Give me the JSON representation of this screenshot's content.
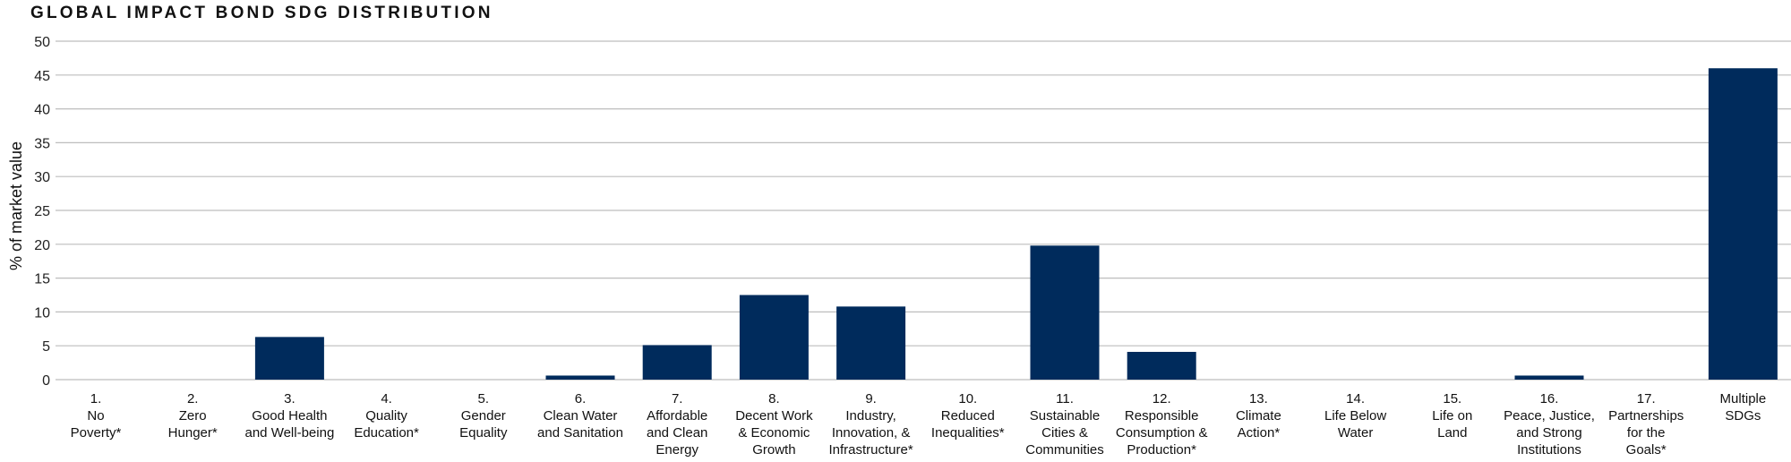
{
  "chart_data": {
    "type": "bar",
    "title": "GLOBAL IMPACT BOND SDG DISTRIBUTION",
    "xlabel": "",
    "ylabel": "% of market value",
    "ylim": [
      0,
      50
    ],
    "yticks": [
      0,
      5,
      10,
      15,
      20,
      25,
      30,
      35,
      40,
      45,
      50
    ],
    "grid": true,
    "bar_color": "#002b5c",
    "categories": [
      [
        "1.",
        "No",
        "Poverty*"
      ],
      [
        "2.",
        "Zero",
        "Hunger*"
      ],
      [
        "3.",
        "Good Health",
        "and Well-being"
      ],
      [
        "4.",
        "Quality",
        "Education*"
      ],
      [
        "5.",
        "Gender",
        "Equality"
      ],
      [
        "6.",
        "Clean Water",
        "and Sanitation"
      ],
      [
        "7.",
        "Affordable",
        "and Clean",
        "Energy"
      ],
      [
        "8.",
        "Decent Work",
        "& Economic",
        "Growth"
      ],
      [
        "9.",
        "Industry,",
        "Innovation, &",
        "Infrastructure*"
      ],
      [
        "10.",
        "Reduced",
        "Inequalities*"
      ],
      [
        "11.",
        "Sustainable",
        "Cities &",
        "Communities"
      ],
      [
        "12.",
        "Responsible",
        "Consumption &",
        "Production*"
      ],
      [
        "13.",
        "Climate",
        "Action*"
      ],
      [
        "14.",
        "Life Below",
        "Water"
      ],
      [
        "15.",
        "Life on",
        "Land"
      ],
      [
        "16.",
        "Peace, Justice,",
        "and Strong",
        "Institutions"
      ],
      [
        "17.",
        "Partnerships",
        "for the",
        "Goals*"
      ],
      [
        "Multiple",
        "SDGs"
      ]
    ],
    "values": [
      0,
      0,
      6.3,
      0,
      0,
      0.6,
      5.1,
      12.5,
      10.8,
      0,
      19.8,
      4.1,
      0,
      0,
      0,
      0.6,
      0,
      46.0
    ]
  }
}
